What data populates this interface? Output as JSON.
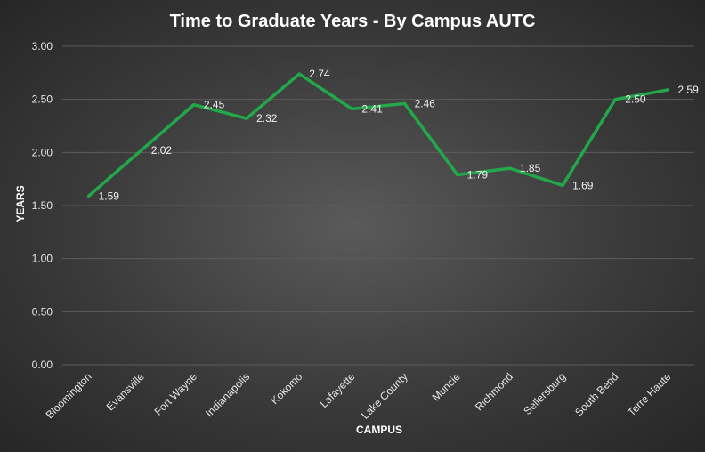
{
  "chart_data": {
    "type": "line",
    "title": "Time to Graduate Years - By Campus AUTC",
    "xlabel": "CAMPUS",
    "ylabel": "YEARS",
    "categories": [
      "Bloomington",
      "Evansville",
      "Fort Wayne",
      "Indianapolis",
      "Kokomo",
      "Lafayette",
      "Lake County",
      "Muncie",
      "Richmond",
      "Sellersburg",
      "South Bend",
      "Terre Haute"
    ],
    "series": [
      {
        "values": [
          1.59,
          2.02,
          2.45,
          2.32,
          2.74,
          2.41,
          2.46,
          1.79,
          1.85,
          1.69,
          2.5,
          2.59
        ],
        "labels": [
          "1.59",
          "2.02",
          "2.45",
          "2.32",
          "2.74",
          "2.41",
          "2.46",
          "1.79",
          "1.85",
          "1.69",
          "2.50",
          "2.59"
        ],
        "color": "#22a84a"
      }
    ],
    "ylim": [
      0,
      3
    ],
    "yticks": [
      "0.00",
      "0.50",
      "1.00",
      "1.50",
      "2.00",
      "2.50",
      "3.00"
    ],
    "grid": true,
    "legend": "none"
  },
  "colors": {
    "background": "#3a3a3a",
    "line": "#22a84a",
    "gridline": "#5c5c5c",
    "text": "#ffffff"
  }
}
